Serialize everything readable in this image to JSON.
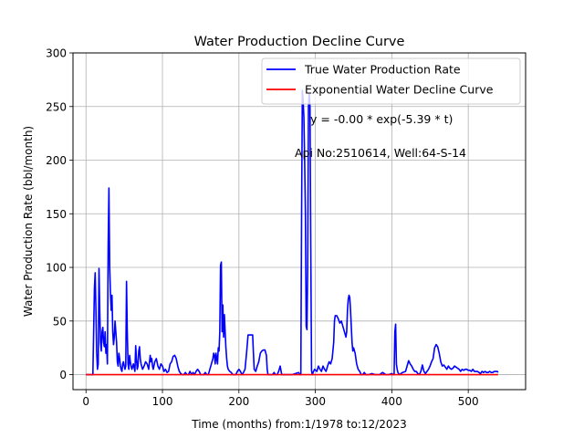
{
  "chart_data": {
    "type": "line",
    "title": "Water Production Decline Curve",
    "xlabel": "Time (months) from:1/1978 to:12/2023",
    "ylabel": "Water Production Rate (bbl/month)",
    "xlim": [
      -17,
      575
    ],
    "ylim": [
      -14,
      300
    ],
    "xticks": [
      0,
      100,
      200,
      300,
      400,
      500
    ],
    "yticks": [
      0,
      50,
      100,
      150,
      200,
      250,
      300
    ],
    "grid": true,
    "legend_position": "top-right",
    "annotations": [
      "y = -0.00 * exp(-5.39 * t)",
      "Api No:2510614, Well:64-S-14"
    ],
    "series": [
      {
        "name": "True Water Production Rate",
        "color": "#0000ff",
        "points": [
          [
            0,
            0
          ],
          [
            9,
            0
          ],
          [
            10,
            40
          ],
          [
            11,
            80
          ],
          [
            12,
            95
          ],
          [
            13,
            60
          ],
          [
            14,
            20
          ],
          [
            15,
            5
          ],
          [
            16,
            10
          ],
          [
            17,
            99
          ],
          [
            18,
            60
          ],
          [
            19,
            30
          ],
          [
            20,
            22
          ],
          [
            21,
            40
          ],
          [
            22,
            44
          ],
          [
            23,
            30
          ],
          [
            24,
            26
          ],
          [
            25,
            40
          ],
          [
            26,
            20
          ],
          [
            27,
            28
          ],
          [
            28,
            10
          ],
          [
            29,
            120
          ],
          [
            30,
            174
          ],
          [
            31,
            100
          ],
          [
            32,
            75
          ],
          [
            33,
            60
          ],
          [
            34,
            74
          ],
          [
            35,
            40
          ],
          [
            36,
            28
          ],
          [
            37,
            35
          ],
          [
            38,
            50
          ],
          [
            39,
            40
          ],
          [
            40,
            30
          ],
          [
            41,
            12
          ],
          [
            42,
            8
          ],
          [
            43,
            20
          ],
          [
            44,
            15
          ],
          [
            45,
            8
          ],
          [
            46,
            5
          ],
          [
            47,
            3
          ],
          [
            48,
            10
          ],
          [
            49,
            12
          ],
          [
            50,
            8
          ],
          [
            51,
            5
          ],
          [
            52,
            8
          ],
          [
            53,
            87
          ],
          [
            54,
            40
          ],
          [
            55,
            10
          ],
          [
            56,
            5
          ],
          [
            57,
            18
          ],
          [
            58,
            12
          ],
          [
            59,
            8
          ],
          [
            60,
            5
          ],
          [
            62,
            10
          ],
          [
            64,
            3
          ],
          [
            65,
            27
          ],
          [
            66,
            15
          ],
          [
            67,
            5
          ],
          [
            68,
            8
          ],
          [
            69,
            22
          ],
          [
            70,
            26
          ],
          [
            71,
            15
          ],
          [
            72,
            10
          ],
          [
            74,
            5
          ],
          [
            76,
            8
          ],
          [
            78,
            12
          ],
          [
            80,
            10
          ],
          [
            82,
            5
          ],
          [
            84,
            18
          ],
          [
            85,
            12
          ],
          [
            86,
            15
          ],
          [
            87,
            8
          ],
          [
            88,
            5
          ],
          [
            90,
            12
          ],
          [
            92,
            15
          ],
          [
            94,
            8
          ],
          [
            96,
            5
          ],
          [
            98,
            10
          ],
          [
            100,
            8
          ],
          [
            102,
            3
          ],
          [
            104,
            5
          ],
          [
            106,
            2
          ],
          [
            108,
            3
          ],
          [
            110,
            10
          ],
          [
            112,
            12
          ],
          [
            114,
            17
          ],
          [
            116,
            18
          ],
          [
            118,
            15
          ],
          [
            120,
            8
          ],
          [
            122,
            3
          ],
          [
            124,
            1
          ],
          [
            126,
            0
          ],
          [
            128,
            0
          ],
          [
            130,
            2
          ],
          [
            132,
            0
          ],
          [
            134,
            0
          ],
          [
            136,
            3
          ],
          [
            138,
            0
          ],
          [
            140,
            2
          ],
          [
            142,
            0
          ],
          [
            144,
            3
          ],
          [
            146,
            5
          ],
          [
            148,
            3
          ],
          [
            150,
            0
          ],
          [
            154,
            0
          ],
          [
            156,
            2
          ],
          [
            158,
            0
          ],
          [
            160,
            0
          ],
          [
            162,
            5
          ],
          [
            164,
            10
          ],
          [
            166,
            15
          ],
          [
            167,
            20
          ],
          [
            168,
            18
          ],
          [
            169,
            10
          ],
          [
            170,
            20
          ],
          [
            171,
            15
          ],
          [
            172,
            10
          ],
          [
            173,
            25
          ],
          [
            174,
            22
          ],
          [
            175,
            40
          ],
          [
            176,
            102
          ],
          [
            177,
            105
          ],
          [
            178,
            40
          ],
          [
            179,
            65
          ],
          [
            180,
            35
          ],
          [
            181,
            56
          ],
          [
            182,
            40
          ],
          [
            183,
            25
          ],
          [
            184,
            15
          ],
          [
            185,
            8
          ],
          [
            186,
            5
          ],
          [
            188,
            3
          ],
          [
            190,
            2
          ],
          [
            192,
            0
          ],
          [
            196,
            0
          ],
          [
            198,
            3
          ],
          [
            200,
            5
          ],
          [
            202,
            3
          ],
          [
            204,
            0
          ],
          [
            206,
            2
          ],
          [
            208,
            5
          ],
          [
            210,
            20
          ],
          [
            212,
            37
          ],
          [
            214,
            37
          ],
          [
            216,
            37
          ],
          [
            218,
            37
          ],
          [
            219,
            20
          ],
          [
            220,
            5
          ],
          [
            222,
            3
          ],
          [
            224,
            8
          ],
          [
            226,
            12
          ],
          [
            228,
            20
          ],
          [
            230,
            22
          ],
          [
            232,
            23
          ],
          [
            234,
            23
          ],
          [
            236,
            18
          ],
          [
            237,
            5
          ],
          [
            238,
            0
          ],
          [
            244,
            0
          ],
          [
            246,
            2
          ],
          [
            248,
            0
          ],
          [
            250,
            0
          ],
          [
            252,
            3
          ],
          [
            254,
            8
          ],
          [
            256,
            0
          ],
          [
            270,
            0
          ],
          [
            274,
            1
          ],
          [
            278,
            2
          ],
          [
            280,
            0
          ],
          [
            281,
            0
          ],
          [
            282,
            150
          ],
          [
            283,
            265
          ],
          [
            284,
            255
          ],
          [
            285,
            240
          ],
          [
            286,
            200
          ],
          [
            287,
            150
          ],
          [
            288,
            45
          ],
          [
            289,
            42
          ],
          [
            290,
            100
          ],
          [
            291,
            250
          ],
          [
            292,
            262
          ],
          [
            293,
            250
          ],
          [
            294,
            120
          ],
          [
            295,
            4
          ],
          [
            296,
            0
          ],
          [
            297,
            2
          ],
          [
            299,
            5
          ],
          [
            302,
            3
          ],
          [
            304,
            8
          ],
          [
            306,
            5
          ],
          [
            308,
            3
          ],
          [
            310,
            8
          ],
          [
            312,
            5
          ],
          [
            314,
            3
          ],
          [
            316,
            8
          ],
          [
            318,
            12
          ],
          [
            320,
            10
          ],
          [
            322,
            15
          ],
          [
            324,
            30
          ],
          [
            325,
            50
          ],
          [
            326,
            55
          ],
          [
            328,
            55
          ],
          [
            330,
            52
          ],
          [
            332,
            48
          ],
          [
            334,
            50
          ],
          [
            336,
            45
          ],
          [
            338,
            40
          ],
          [
            340,
            35
          ],
          [
            341,
            40
          ],
          [
            342,
            60
          ],
          [
            343,
            70
          ],
          [
            344,
            74
          ],
          [
            345,
            72
          ],
          [
            346,
            60
          ],
          [
            347,
            45
          ],
          [
            348,
            30
          ],
          [
            349,
            22
          ],
          [
            350,
            25
          ],
          [
            352,
            20
          ],
          [
            354,
            10
          ],
          [
            356,
            5
          ],
          [
            358,
            3
          ],
          [
            360,
            0
          ],
          [
            362,
            0
          ],
          [
            364,
            2
          ],
          [
            366,
            0
          ],
          [
            370,
            0
          ],
          [
            374,
            1
          ],
          [
            378,
            0
          ],
          [
            384,
            0
          ],
          [
            388,
            2
          ],
          [
            392,
            0
          ],
          [
            396,
            0
          ],
          [
            400,
            1
          ],
          [
            402,
            0
          ],
          [
            403,
            0
          ],
          [
            404,
            40
          ],
          [
            405,
            47
          ],
          [
            406,
            10
          ],
          [
            407,
            5
          ],
          [
            408,
            2
          ],
          [
            410,
            0
          ],
          [
            414,
            2
          ],
          [
            418,
            3
          ],
          [
            420,
            8
          ],
          [
            422,
            13
          ],
          [
            424,
            10
          ],
          [
            426,
            8
          ],
          [
            428,
            5
          ],
          [
            430,
            3
          ],
          [
            432,
            3
          ],
          [
            434,
            1
          ],
          [
            436,
            0
          ],
          [
            438,
            3
          ],
          [
            440,
            9
          ],
          [
            442,
            3
          ],
          [
            444,
            1
          ],
          [
            446,
            3
          ],
          [
            448,
            5
          ],
          [
            450,
            8
          ],
          [
            452,
            12
          ],
          [
            454,
            15
          ],
          [
            456,
            25
          ],
          [
            458,
            28
          ],
          [
            460,
            26
          ],
          [
            462,
            20
          ],
          [
            464,
            12
          ],
          [
            466,
            8
          ],
          [
            468,
            9
          ],
          [
            470,
            7
          ],
          [
            472,
            5
          ],
          [
            474,
            8
          ],
          [
            476,
            6
          ],
          [
            478,
            5
          ],
          [
            480,
            6
          ],
          [
            482,
            8
          ],
          [
            484,
            7
          ],
          [
            486,
            6
          ],
          [
            488,
            5
          ],
          [
            490,
            3
          ],
          [
            492,
            5
          ],
          [
            494,
            4
          ],
          [
            496,
            5
          ],
          [
            498,
            5
          ],
          [
            500,
            4
          ],
          [
            502,
            4
          ],
          [
            504,
            3
          ],
          [
            506,
            5
          ],
          [
            508,
            3
          ],
          [
            510,
            3
          ],
          [
            512,
            3
          ],
          [
            514,
            2
          ],
          [
            516,
            1
          ],
          [
            518,
            3
          ],
          [
            520,
            2
          ],
          [
            522,
            3
          ],
          [
            524,
            2
          ],
          [
            526,
            2
          ],
          [
            528,
            3
          ],
          [
            530,
            2
          ],
          [
            532,
            2
          ],
          [
            534,
            3
          ],
          [
            536,
            3
          ],
          [
            538,
            3
          ],
          [
            539,
            2
          ]
        ]
      },
      {
        "name": "Exponential Water Decline Curve",
        "color": "#ff0000",
        "points": [
          [
            0,
            0
          ],
          [
            539,
            0
          ]
        ]
      }
    ]
  }
}
